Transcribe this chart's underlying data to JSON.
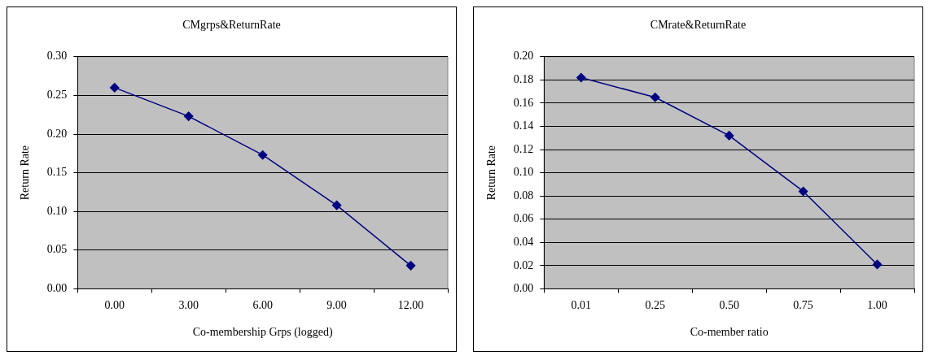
{
  "chart_data": [
    {
      "type": "line",
      "title": "CMgrps&ReturnRate",
      "xlabel": "Co-membership Grps (logged)",
      "ylabel": "Return Rate",
      "categories": [
        "0.00",
        "3.00",
        "6.00",
        "9.00",
        "12.00"
      ],
      "series": [
        {
          "color": "#000080",
          "values": [
            0.26,
            0.223,
            0.173,
            0.108,
            0.03
          ]
        }
      ],
      "ylim": [
        0,
        0.3
      ],
      "yticks": [
        {
          "value": 0,
          "label": "0.00"
        },
        {
          "value": 0.05,
          "label": "0.05"
        },
        {
          "value": 0.1,
          "label": "0.10"
        },
        {
          "value": 0.15,
          "label": "0.15"
        },
        {
          "value": 0.2,
          "label": "0.20"
        },
        {
          "value": 0.25,
          "label": "0.25"
        },
        {
          "value": 0.3,
          "label": "0.30"
        }
      ],
      "grid": "y",
      "legend": false,
      "marker": "diamond",
      "line_style": "solid"
    },
    {
      "type": "line",
      "title": "CMrate&ReturnRate",
      "xlabel": "Co-member ratio",
      "ylabel": "Return Rate",
      "categories": [
        "0.01",
        "0.25",
        "0.50",
        "0.75",
        "1.00"
      ],
      "series": [
        {
          "color": "#000080",
          "values": [
            0.182,
            0.165,
            0.132,
            0.084,
            0.021
          ]
        }
      ],
      "ylim": [
        0,
        0.2
      ],
      "yticks": [
        {
          "value": 0,
          "label": "0.00"
        },
        {
          "value": 0.02,
          "label": "0.02"
        },
        {
          "value": 0.04,
          "label": "0.04"
        },
        {
          "value": 0.06,
          "label": "0.06"
        },
        {
          "value": 0.08,
          "label": "0.08"
        },
        {
          "value": 0.1,
          "label": "0.10"
        },
        {
          "value": 0.12,
          "label": "0.12"
        },
        {
          "value": 0.14,
          "label": "0.14"
        },
        {
          "value": 0.16,
          "label": "0.16"
        },
        {
          "value": 0.18,
          "label": "0.18"
        },
        {
          "value": 0.2,
          "label": "0.20"
        }
      ],
      "grid": "y",
      "legend": false,
      "marker": "diamond",
      "line_style": "solid"
    }
  ]
}
